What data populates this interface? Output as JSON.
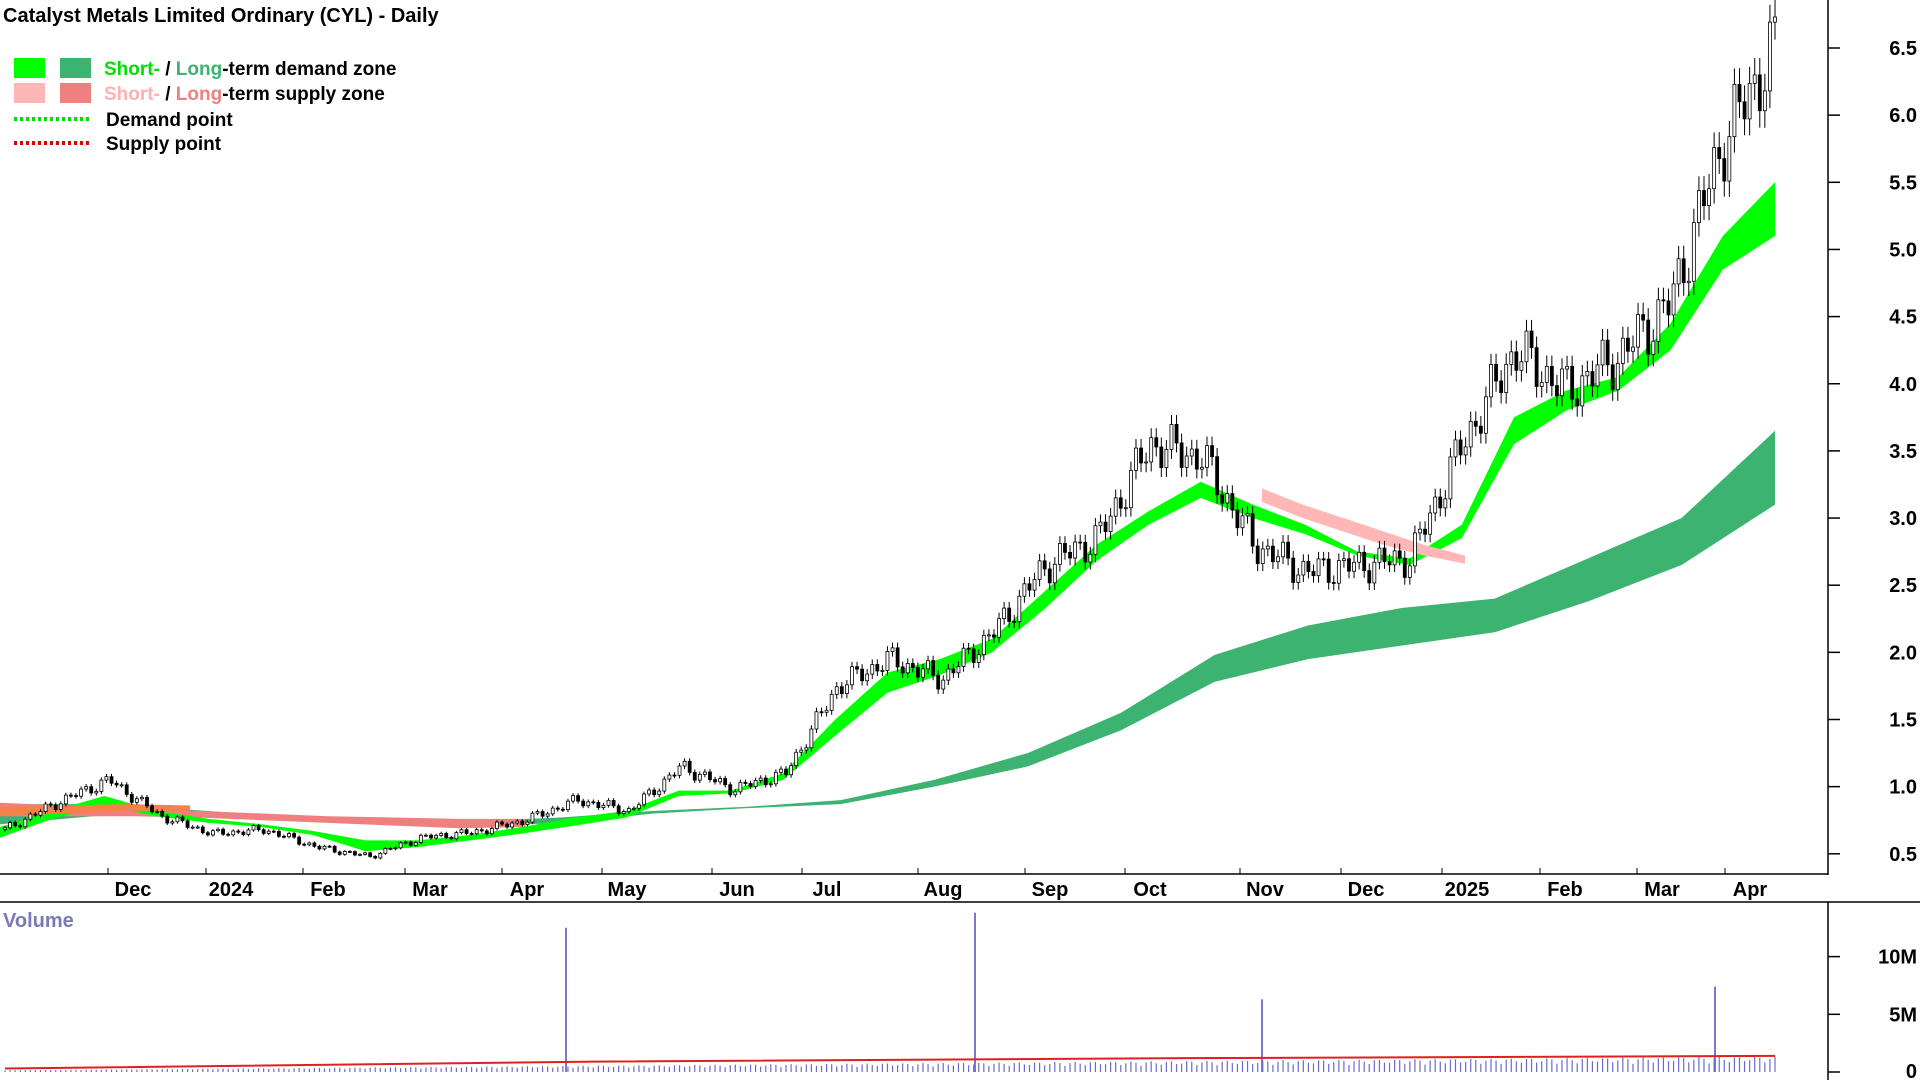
{
  "title": "Catalyst Metals Limited Ordinary (CYL) - Daily",
  "legend": {
    "demand_zone": {
      "short": "Short-",
      "sep": " / ",
      "long": "Long",
      "rest": "-term demand zone"
    },
    "supply_zone": {
      "short": "Short-",
      "sep": " / ",
      "long": "Long",
      "rest": "-term supply zone"
    },
    "demand_point": "Demand point",
    "supply_point": "Supply point"
  },
  "colors": {
    "short_demand": "#00ff00",
    "long_demand": "#3cb371",
    "short_supply": "#ffb6b6",
    "long_supply": "#f08080",
    "supply_overlap": "#f4804a",
    "volume_bar": "#6a6ad0",
    "volume_ma": "#e02020",
    "volume_label": "#7a7ab8"
  },
  "chart_data": [
    {
      "type": "candlestick",
      "title": "Catalyst Metals Limited Ordinary (CYL) - Daily",
      "x_tick_labels": [
        "Dec",
        "2024",
        "Feb",
        "Mar",
        "Apr",
        "May",
        "Jun",
        "Jul",
        "Aug",
        "Sep",
        "Oct",
        "Nov",
        "Dec",
        "2025",
        "Feb",
        "Mar",
        "Apr"
      ],
      "y_tick_labels": [
        "0.5",
        "1.0",
        "1.5",
        "2.0",
        "2.5",
        "3.0",
        "3.5",
        "4.0",
        "4.5",
        "5.0",
        "5.5",
        "6.0",
        "6.5"
      ],
      "ylim": [
        0.35,
        6.75
      ],
      "grid": false,
      "legend_position": "top-left",
      "price_close": [
        [
          "Nov",
          0.68
        ],
        [
          "Dec",
          0.88
        ],
        [
          "Dec",
          1.05
        ],
        [
          "2024",
          0.78
        ],
        [
          "2024",
          0.65
        ],
        [
          "Feb",
          0.68
        ],
        [
          "Feb",
          0.55
        ],
        [
          "Mar",
          0.48
        ],
        [
          "Mar",
          0.62
        ],
        [
          "Apr",
          0.66
        ],
        [
          "Apr",
          0.75
        ],
        [
          "May",
          0.9
        ],
        [
          "May",
          0.82
        ],
        [
          "Jun",
          1.15
        ],
        [
          "Jun",
          0.98
        ],
        [
          "Jul",
          1.1
        ],
        [
          "Jul",
          1.75
        ],
        [
          "Aug",
          1.95
        ],
        [
          "Aug",
          1.8
        ],
        [
          "Sep",
          2.15
        ],
        [
          "Sep",
          2.65
        ],
        [
          "Oct",
          2.85
        ],
        [
          "Oct",
          3.55
        ],
        [
          "Nov",
          3.45
        ],
        [
          "Nov",
          2.8
        ],
        [
          "Dec",
          2.6
        ],
        [
          "Dec",
          2.65
        ],
        [
          "2025",
          2.7
        ],
        [
          "2025",
          3.55
        ],
        [
          "Feb",
          4.25
        ],
        [
          "Feb",
          3.95
        ],
        [
          "Mar",
          4.2
        ],
        [
          "Mar",
          4.6
        ],
        [
          "Apr",
          5.8
        ],
        [
          "Apr",
          6.5
        ]
      ],
      "series": [
        {
          "name": "Short-term demand zone",
          "role": "short-ema-band",
          "x_labels": [
            "Nov",
            "Dec",
            "Dec",
            "2024",
            "2024",
            "Feb",
            "Feb",
            "Mar",
            "Mar",
            "Apr",
            "Apr",
            "May",
            "May",
            "Jun",
            "Jun",
            "Jul",
            "Jul",
            "Aug",
            "Aug",
            "Sep",
            "Sep",
            "Oct",
            "Oct",
            "Nov",
            "Nov",
            "Dec",
            "Dec",
            "2025",
            "2025",
            "Feb",
            "Feb",
            "Mar",
            "Mar",
            "Apr",
            "Apr"
          ],
          "upper": [
            0.7,
            0.82,
            0.93,
            0.82,
            0.76,
            0.72,
            0.67,
            0.6,
            0.6,
            0.64,
            0.7,
            0.77,
            0.82,
            0.97,
            0.97,
            1.1,
            1.5,
            1.85,
            1.95,
            2.1,
            2.45,
            2.8,
            3.05,
            3.27,
            3.1,
            2.95,
            2.75,
            2.7,
            2.95,
            3.75,
            3.95,
            4.05,
            4.45,
            5.1,
            5.5
          ],
          "lower": [
            0.62,
            0.76,
            0.86,
            0.78,
            0.73,
            0.7,
            0.64,
            0.52,
            0.55,
            0.6,
            0.65,
            0.71,
            0.77,
            0.93,
            0.95,
            1.05,
            1.38,
            1.7,
            1.83,
            2.0,
            2.32,
            2.68,
            2.95,
            3.15,
            3.0,
            2.88,
            2.72,
            2.65,
            2.85,
            3.55,
            3.8,
            3.95,
            4.25,
            4.85,
            5.1
          ]
        },
        {
          "name": "Long-term demand zone",
          "role": "long-ema-band",
          "x_labels": [
            "Nov",
            "Dec",
            "2024",
            "Feb",
            "Mar",
            "Apr",
            "May",
            "Jun",
            "Jul",
            "Jul",
            "Aug",
            "Sep",
            "Oct",
            "Nov",
            "Nov",
            "Dec",
            "2025",
            "Feb",
            "Mar",
            "Apr"
          ],
          "upper": [
            0.87,
            0.87,
            0.83,
            0.78,
            0.75,
            0.74,
            0.77,
            0.82,
            0.85,
            0.9,
            1.05,
            1.25,
            1.55,
            1.98,
            2.2,
            2.33,
            2.4,
            2.7,
            3.0,
            3.65
          ],
          "lower": [
            0.72,
            0.78,
            0.8,
            0.76,
            0.72,
            0.7,
            0.73,
            0.8,
            0.84,
            0.87,
            1.0,
            1.15,
            1.42,
            1.78,
            1.95,
            2.05,
            2.15,
            2.38,
            2.65,
            3.1
          ]
        }
      ]
    },
    {
      "type": "bar",
      "title": "Volume",
      "y_tick_labels": [
        "0",
        "5M",
        "10M"
      ],
      "ylim": [
        0,
        13000000
      ],
      "notable_values": [
        {
          "x": "Feb-Mar 2024",
          "value": 12500000
        },
        {
          "x": "Aug 2024",
          "value": 13800000
        },
        {
          "x": "Nov 2024",
          "value": 6300000
        },
        {
          "x": "Mar 2025",
          "value": 7400000
        }
      ],
      "average_line_values": [
        300000,
        900000,
        1200000,
        1400000
      ]
    }
  ]
}
